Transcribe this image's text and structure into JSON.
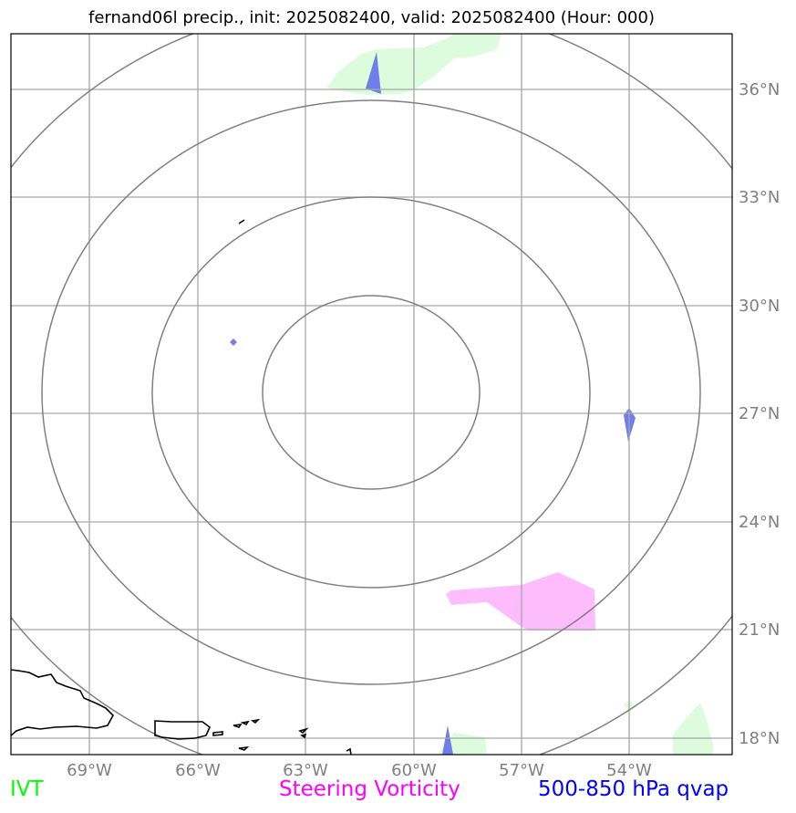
{
  "title": "fernand06l precip., init: 2025082400, valid: 2025082400 (Hour: 000)",
  "map": {
    "longitude_labels": [
      "69°W",
      "66°W",
      "63°W",
      "60°W",
      "57°W",
      "54°W"
    ],
    "latitude_labels": [
      "36°N",
      "33°N",
      "30°N",
      "27°N",
      "24°N",
      "21°N",
      "18°N"
    ],
    "extent": {
      "lon_min": -71.2,
      "lon_max": -51.2,
      "lat_min": 17.5,
      "lat_max": 37.6
    },
    "range_rings_center": {
      "lon": -61.0,
      "lat": 28.0
    },
    "grid_color": "#a6a6a6",
    "ring_color": "#808080"
  },
  "legend": {
    "ivt": {
      "label": "IVT",
      "color": "#00ff00"
    },
    "vorticity": {
      "label": "Steering Vorticity",
      "color": "#ff00ff"
    },
    "qvap": {
      "label": "500-850 hPa qvap",
      "color": "#0000ff"
    }
  },
  "layers": {
    "ivt_fill": "#ddfbdd",
    "vorticity_fill": "#fdbdfd",
    "qvap_fill": "#6f7ee8"
  }
}
